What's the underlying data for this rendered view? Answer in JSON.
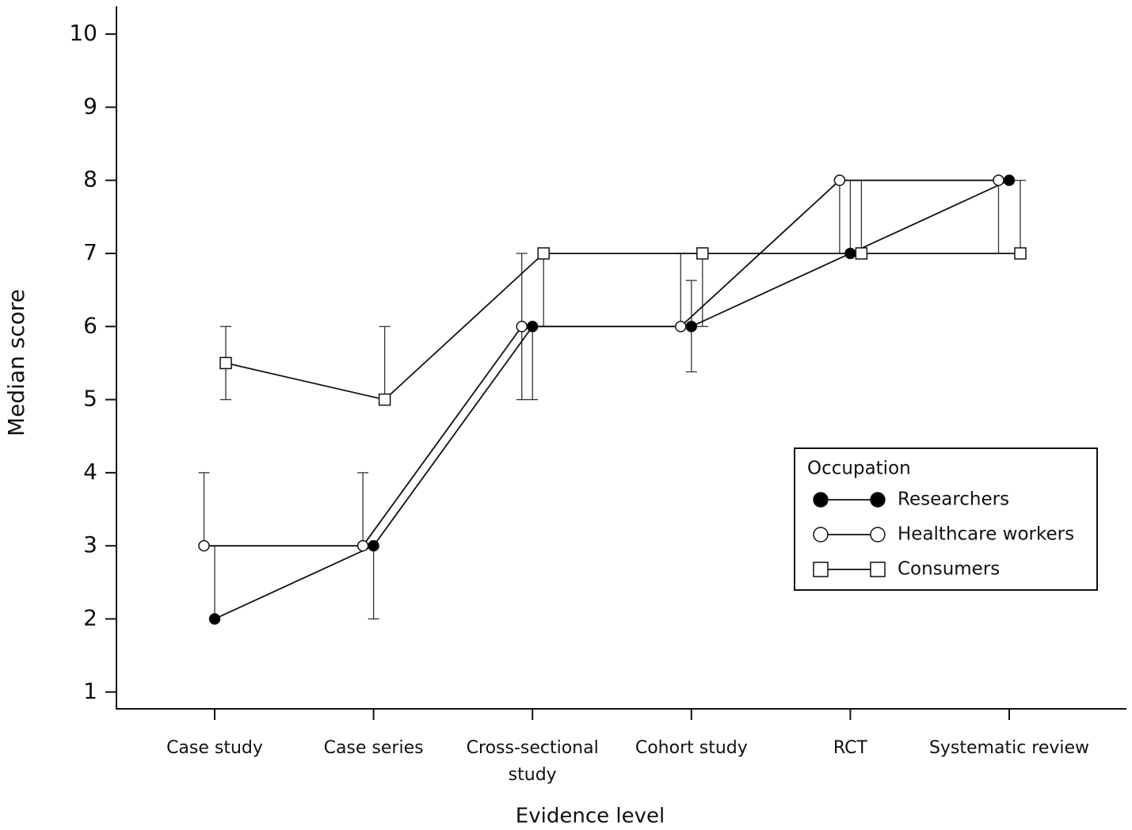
{
  "chart_data": {
    "type": "line",
    "x_label": "Evidence level",
    "y_label": "Median score",
    "categories": [
      "Case study",
      "Case series",
      "Cross-sectional study",
      "Cohort study",
      "RCT",
      "Systematic review"
    ],
    "legend_title": "Occupation",
    "series": [
      {
        "name": "Researchers",
        "color": "#000000",
        "marker": "circle",
        "values": [
          2,
          3,
          6,
          6,
          7,
          8
        ],
        "low": [
          2,
          2,
          5,
          5.38,
          7,
          8
        ],
        "high": [
          3,
          3,
          6,
          6.63,
          8,
          8
        ]
      },
      {
        "name": "Healthcare workers",
        "color": "#ffffff",
        "marker": "circle",
        "values": [
          3,
          3,
          6,
          6,
          8,
          8
        ],
        "low": [
          3,
          3,
          5,
          6,
          7,
          7
        ],
        "high": [
          4,
          4,
          7,
          7,
          8,
          8
        ]
      },
      {
        "name": "Consumers",
        "color": "#ffffff",
        "marker": "square",
        "values": [
          5.5,
          5,
          7,
          7,
          7,
          7
        ],
        "low": [
          5,
          5,
          6,
          6,
          7,
          7
        ],
        "high": [
          6,
          6,
          7,
          7,
          8,
          8
        ]
      }
    ],
    "ylim": [
      0.77,
      10.38
    ],
    "yticks": [
      1,
      2,
      3,
      4,
      5,
      6,
      7,
      8,
      9,
      10
    ]
  }
}
